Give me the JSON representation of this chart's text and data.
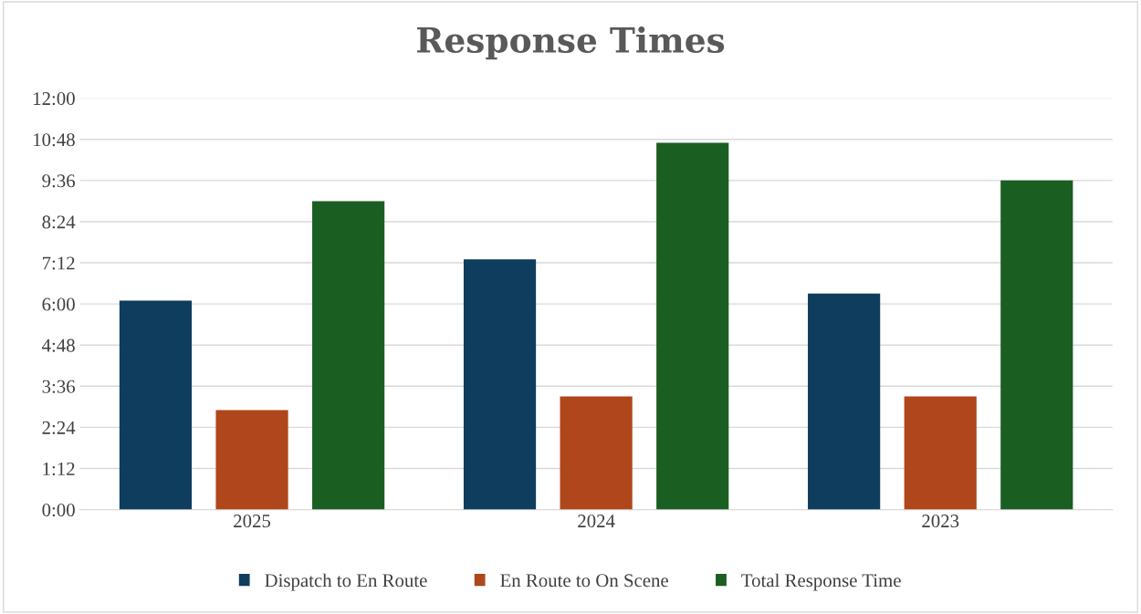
{
  "chart_data": {
    "type": "bar",
    "title": "Response Times",
    "categories": [
      "2025",
      "2024",
      "2023"
    ],
    "series": [
      {
        "name": "Dispatch to En Route",
        "color": "#0f3d5e",
        "values": [
          6.1,
          7.3,
          6.3
        ]
      },
      {
        "name": "En Route to On Scene",
        "color": "#b0461b",
        "values": [
          2.9,
          3.3,
          3.3
        ]
      },
      {
        "name": "Total Response Time",
        "color": "#1b5e22",
        "values": [
          9.0,
          10.7,
          9.6
        ]
      }
    ],
    "ylim": [
      0,
      12
    ],
    "yticks": [
      {
        "value": 0,
        "label": "0:00"
      },
      {
        "value": 1.2,
        "label": "1:12"
      },
      {
        "value": 2.4,
        "label": "2:24"
      },
      {
        "value": 3.6,
        "label": "3:36"
      },
      {
        "value": 4.8,
        "label": "4:48"
      },
      {
        "value": 6,
        "label": "6:00"
      },
      {
        "value": 7.2,
        "label": "7:12"
      },
      {
        "value": 8.4,
        "label": "8:24"
      },
      {
        "value": 9.6,
        "label": "9:36"
      },
      {
        "value": 10.8,
        "label": "10:48"
      },
      {
        "value": 12,
        "label": "12:00"
      }
    ],
    "grid": "y",
    "legend": "bottom"
  }
}
